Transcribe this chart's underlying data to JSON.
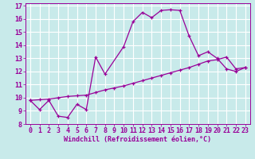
{
  "xlabel": "Windchill (Refroidissement éolien,°C)",
  "bg_color": "#c8eaea",
  "line_color": "#990099",
  "grid_color": "#ffffff",
  "xlim": [
    -0.5,
    23.5
  ],
  "ylim": [
    8,
    17.2
  ],
  "xticks": [
    0,
    1,
    2,
    3,
    4,
    5,
    6,
    7,
    8,
    9,
    10,
    11,
    12,
    13,
    14,
    15,
    16,
    17,
    18,
    19,
    20,
    21,
    22,
    23
  ],
  "yticks": [
    8,
    9,
    10,
    11,
    12,
    13,
    14,
    15,
    16,
    17
  ],
  "curve1_x": [
    0,
    1,
    2,
    3,
    4,
    5,
    6,
    7,
    8,
    10,
    11,
    12,
    13,
    14,
    15,
    16,
    17,
    18,
    19,
    20,
    21,
    22,
    23
  ],
  "curve1_y": [
    9.8,
    9.1,
    9.8,
    8.6,
    8.5,
    9.5,
    9.1,
    13.1,
    11.8,
    13.9,
    15.8,
    16.5,
    16.1,
    16.65,
    16.7,
    16.65,
    14.7,
    13.2,
    13.5,
    13.0,
    12.2,
    12.0,
    12.3
  ],
  "curve2_x": [
    0,
    1,
    2,
    3,
    4,
    5,
    6,
    7,
    8,
    9,
    10,
    11,
    12,
    13,
    14,
    15,
    16,
    17,
    18,
    19,
    20,
    21,
    22,
    23
  ],
  "curve2_y": [
    9.8,
    9.85,
    9.9,
    10.0,
    10.1,
    10.15,
    10.2,
    10.4,
    10.6,
    10.75,
    10.9,
    11.1,
    11.3,
    11.5,
    11.7,
    11.9,
    12.1,
    12.3,
    12.55,
    12.8,
    12.9,
    13.1,
    12.2,
    12.3
  ],
  "xlabel_fontsize": 6,
  "tick_fontsize": 6
}
